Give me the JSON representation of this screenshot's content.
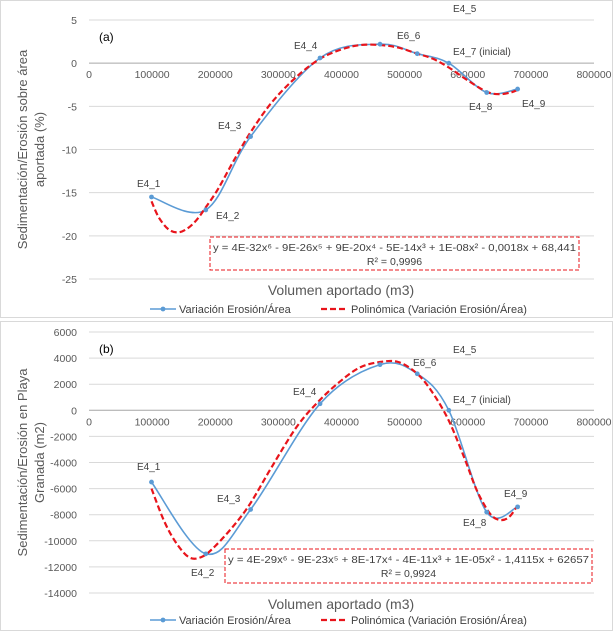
{
  "colors": {
    "series": "#5b9bd5",
    "fit": "#e8141b",
    "axis": "#595959",
    "grid": "#d9d9d9",
    "legend_text": "#404040"
  },
  "legend": {
    "series_label": "Variación Erosión/Área",
    "fit_label": "Polinómica (Variación Erosión/Área)"
  },
  "chart_data": [
    {
      "type": "line",
      "panel_label": "(a)",
      "xlabel": "Volumen aportado (m3)",
      "ylabel_lines": [
        "Sedimentación/Erosión sobre área",
        "aportada (%)"
      ],
      "xlim": [
        0,
        800000
      ],
      "ylim": [
        -25,
        5
      ],
      "x_ticks": [
        0,
        100000,
        200000,
        300000,
        400000,
        500000,
        600000,
        700000,
        800000
      ],
      "x_tick_labels": [
        "0",
        "100000",
        "200000",
        "300000",
        "400000",
        "500000",
        "600000",
        "700000",
        "800000"
      ],
      "y_ticks": [
        5,
        0,
        -5,
        -10,
        -15,
        -20,
        -25
      ],
      "y_tick_labels": [
        "5",
        "0",
        "-5",
        "-10",
        "-15",
        "-20",
        "-25"
      ],
      "grid": "horizontal",
      "legend_position": "bottom",
      "series": [
        {
          "name": "Variación Erosión/Área",
          "points": [
            {
              "label": "E4_1",
              "x": 99000,
              "y": -15.5
            },
            {
              "label": "E4_2",
              "x": 185000,
              "y": -17.0
            },
            {
              "label": "E4_3",
              "x": 256000,
              "y": -8.5
            },
            {
              "label": "E4_4",
              "x": 366000,
              "y": 0.6
            },
            {
              "label": "E4_5",
              "x": 461000,
              "y": 2.2
            },
            {
              "label": "E6_6",
              "x": 520000,
              "y": 1.1
            },
            {
              "label": "E4_7 (inicial)",
              "x": 570000,
              "y": 0.0
            },
            {
              "label": "E4_8",
              "x": 630000,
              "y": -3.4
            },
            {
              "label": "E4_9",
              "x": 679000,
              "y": -3.0
            }
          ]
        }
      ],
      "trendline": {
        "name": "Polinómica (Variación Erosión/Área)",
        "values": [
          {
            "x": 99000,
            "y": -16.0
          },
          {
            "x": 110000,
            "y": -17.8
          },
          {
            "x": 125000,
            "y": -19.2
          },
          {
            "x": 140000,
            "y": -19.6
          },
          {
            "x": 155000,
            "y": -19.2
          },
          {
            "x": 170000,
            "y": -18.2
          },
          {
            "x": 185000,
            "y": -16.7
          },
          {
            "x": 205000,
            "y": -14.5
          },
          {
            "x": 230000,
            "y": -11.2
          },
          {
            "x": 256000,
            "y": -8.0
          },
          {
            "x": 290000,
            "y": -4.5
          },
          {
            "x": 330000,
            "y": -1.5
          },
          {
            "x": 366000,
            "y": 0.5
          },
          {
            "x": 400000,
            "y": 1.6
          },
          {
            "x": 430000,
            "y": 2.1
          },
          {
            "x": 461000,
            "y": 2.1
          },
          {
            "x": 490000,
            "y": 1.8
          },
          {
            "x": 520000,
            "y": 1.1
          },
          {
            "x": 545000,
            "y": 0.5
          },
          {
            "x": 570000,
            "y": -0.5
          },
          {
            "x": 600000,
            "y": -2.0
          },
          {
            "x": 630000,
            "y": -3.3
          },
          {
            "x": 650000,
            "y": -3.6
          },
          {
            "x": 668000,
            "y": -3.4
          },
          {
            "x": 679000,
            "y": -3.1
          }
        ]
      },
      "equation": "y = 4E-32x⁶ - 9E-26x⁵ + 9E-20x⁴ - 5E-14x³ + 1E-08x² - 0,0018x + 68,441",
      "r2": "R² = 0,9996"
    },
    {
      "type": "line",
      "panel_label": "(b)",
      "xlabel": "Volumen aportado (m3)",
      "ylabel_lines": [
        "Sedimentación/Erosión en Playa",
        "Granada (m2)"
      ],
      "xlim": [
        0,
        800000
      ],
      "ylim": [
        -14000,
        6000
      ],
      "x_ticks": [
        0,
        100000,
        200000,
        300000,
        400000,
        500000,
        600000,
        700000,
        800000
      ],
      "x_tick_labels": [
        "0",
        "100000",
        "200000",
        "300000",
        "400000",
        "500000",
        "600000",
        "700000",
        "800000"
      ],
      "y_ticks": [
        6000,
        4000,
        2000,
        0,
        -2000,
        -4000,
        -6000,
        -8000,
        -10000,
        -12000,
        -14000
      ],
      "y_tick_labels": [
        "6000",
        "4000",
        "2000",
        "0",
        "-2000",
        "-4000",
        "-6000",
        "-8000",
        "-10000",
        "-12000",
        "-14000"
      ],
      "grid": "horizontal",
      "legend_position": "bottom",
      "series": [
        {
          "name": "Variación Erosión/Área",
          "points": [
            {
              "label": "E4_1",
              "x": 99000,
              "y": -5500
            },
            {
              "label": "E4_2",
              "x": 185000,
              "y": -11000
            },
            {
              "label": "E4_3",
              "x": 256000,
              "y": -7600
            },
            {
              "label": "E4_4",
              "x": 366000,
              "y": 500
            },
            {
              "label": "E4_5",
              "x": 461000,
              "y": 3500
            },
            {
              "label": "E6_6",
              "x": 520000,
              "y": 2800
            },
            {
              "label": "E4_7 (inicial)",
              "x": 570000,
              "y": 0
            },
            {
              "label": "E4_8",
              "x": 630000,
              "y": -7800
            },
            {
              "label": "E4_9",
              "x": 679000,
              "y": -7400
            }
          ]
        }
      ],
      "trendline": {
        "name": "Polinómica (Variación Erosión/Área)",
        "values": [
          {
            "x": 99000,
            "y": -6000
          },
          {
            "x": 120000,
            "y": -8600
          },
          {
            "x": 140000,
            "y": -10300
          },
          {
            "x": 160000,
            "y": -11300
          },
          {
            "x": 180000,
            "y": -11200
          },
          {
            "x": 200000,
            "y": -10400
          },
          {
            "x": 230000,
            "y": -8800
          },
          {
            "x": 256000,
            "y": -7100
          },
          {
            "x": 290000,
            "y": -4300
          },
          {
            "x": 330000,
            "y": -1200
          },
          {
            "x": 366000,
            "y": 800
          },
          {
            "x": 400000,
            "y": 2300
          },
          {
            "x": 430000,
            "y": 3300
          },
          {
            "x": 461000,
            "y": 3700
          },
          {
            "x": 490000,
            "y": 3700
          },
          {
            "x": 520000,
            "y": 2800
          },
          {
            "x": 545000,
            "y": 1300
          },
          {
            "x": 570000,
            "y": -800
          },
          {
            "x": 595000,
            "y": -3700
          },
          {
            "x": 615000,
            "y": -6200
          },
          {
            "x": 635000,
            "y": -7900
          },
          {
            "x": 650000,
            "y": -8400
          },
          {
            "x": 665000,
            "y": -8200
          },
          {
            "x": 679000,
            "y": -7300
          }
        ]
      },
      "equation": "y = 4E-29x⁶ - 9E-23x⁵ + 8E-17x⁴ - 4E-11x³ + 1E-05x² - 1,4115x + 62657",
      "r2": "R² = 0,9924"
    }
  ]
}
